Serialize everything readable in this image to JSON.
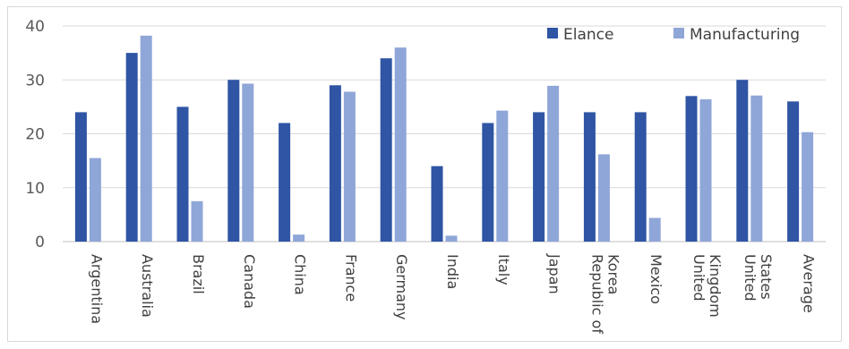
{
  "chart_data": {
    "type": "bar",
    "categories": [
      [
        "Argentina"
      ],
      [
        "Australia"
      ],
      [
        "Brazil"
      ],
      [
        "Canada"
      ],
      [
        "China"
      ],
      [
        "France"
      ],
      [
        "Germany"
      ],
      [
        "India"
      ],
      [
        "Italy"
      ],
      [
        "Japan"
      ],
      [
        "Republic of",
        "Korea"
      ],
      [
        "Mexico"
      ],
      [
        "United",
        "Kingdom"
      ],
      [
        "United",
        "States"
      ],
      [
        "Average"
      ]
    ],
    "series": [
      {
        "name": "Elance",
        "color": "#2f55a4",
        "values": [
          24,
          35,
          25,
          30,
          22,
          29,
          34,
          14,
          22,
          24,
          24,
          24,
          27,
          30,
          26
        ]
      },
      {
        "name": "Manufacturing",
        "color": "#8fa6d8",
        "values": [
          15.5,
          38.2,
          7.5,
          29.3,
          1.3,
          27.8,
          36,
          1.1,
          24.3,
          28.9,
          16.2,
          4.4,
          26.4,
          27.1,
          20.3
        ]
      }
    ],
    "yticks": [
      0,
      10,
      20,
      30,
      40
    ],
    "ylim": [
      0,
      40
    ],
    "grid": true,
    "legend_position": "top-right",
    "title": "",
    "xlabel": "",
    "ylabel": ""
  }
}
